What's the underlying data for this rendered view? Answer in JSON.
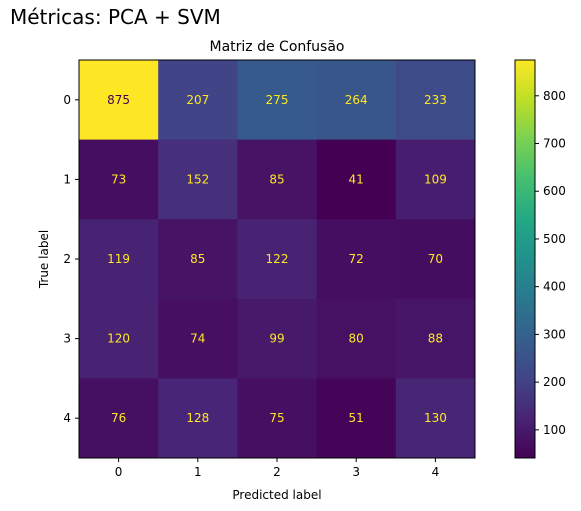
{
  "figure": {
    "suptitle": "Métricas: PCA + SVM"
  },
  "chart_data": {
    "type": "heatmap",
    "title": "Matriz de Confusão",
    "xlabel": "Predicted label",
    "ylabel": "True label",
    "x_categories": [
      "0",
      "1",
      "2",
      "3",
      "4"
    ],
    "y_categories": [
      "0",
      "1",
      "2",
      "3",
      "4"
    ],
    "values": [
      [
        875,
        207,
        275,
        264,
        233
      ],
      [
        73,
        152,
        85,
        41,
        109
      ],
      [
        119,
        85,
        122,
        72,
        70
      ],
      [
        120,
        74,
        99,
        80,
        88
      ],
      [
        76,
        128,
        75,
        51,
        130
      ]
    ],
    "colormap": "viridis",
    "colorbar": {
      "min": 41,
      "max": 875,
      "ticks": [
        100,
        200,
        300,
        400,
        500,
        600,
        700,
        800
      ]
    },
    "colors": {
      "text_on_dark": "#fde725",
      "text_on_light": "#440154"
    },
    "grid": false
  }
}
